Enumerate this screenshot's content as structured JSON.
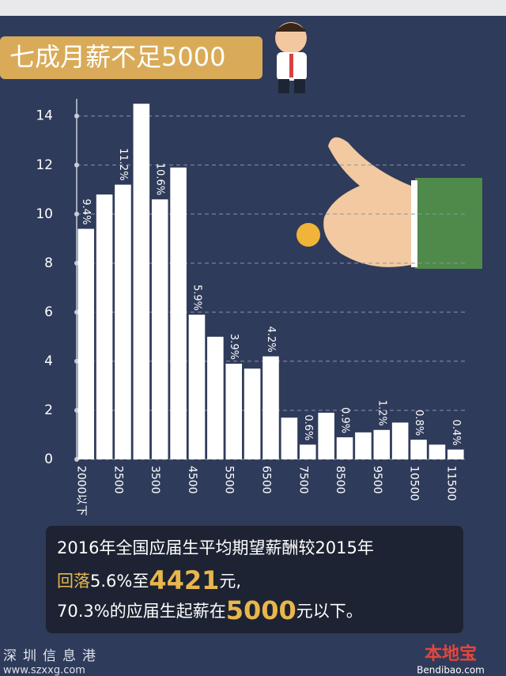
{
  "chart_data": {
    "type": "bar",
    "title": "七成月薪不足5000",
    "categories": [
      "2000以下",
      null,
      "2500",
      null,
      "3500",
      null,
      "4500",
      null,
      "5500",
      null,
      "6500",
      null,
      "7500",
      null,
      "8500",
      null,
      "9500",
      null,
      "10500",
      null,
      "11500"
    ],
    "values": [
      9.4,
      10.8,
      11.2,
      14.5,
      10.6,
      11.9,
      5.9,
      5.0,
      3.9,
      3.7,
      4.2,
      1.7,
      0.6,
      1.9,
      0.9,
      1.1,
      1.2,
      1.5,
      0.8,
      0.6,
      0.4
    ],
    "value_labels": [
      "9.4%",
      null,
      "11.2%",
      null,
      "10.6%",
      null,
      "5.9%",
      null,
      "3.9%",
      null,
      "4.2%",
      null,
      "0.6%",
      null,
      "0.9%",
      null,
      "1.2%",
      null,
      "0.8%",
      null,
      "0.4%"
    ],
    "color": "#ffffff",
    "ylim": [
      0,
      14.7
    ],
    "yticks": [
      0,
      2,
      4,
      6,
      8,
      10,
      12,
      14
    ],
    "grid": true
  },
  "summary": {
    "line1": "2016年全国应届生平均期望薪酬较2015年",
    "line2": [
      "回落",
      "5.6%至",
      "4421",
      "元,"
    ],
    "line3": [
      "70.3%的应届生起薪在",
      "5000",
      "元以下。"
    ]
  },
  "watermarks": {
    "left": "深圳信息港",
    "left_url": "www.szxxg.com",
    "right": "本地宝",
    "right_url": "Bendibao.com"
  }
}
